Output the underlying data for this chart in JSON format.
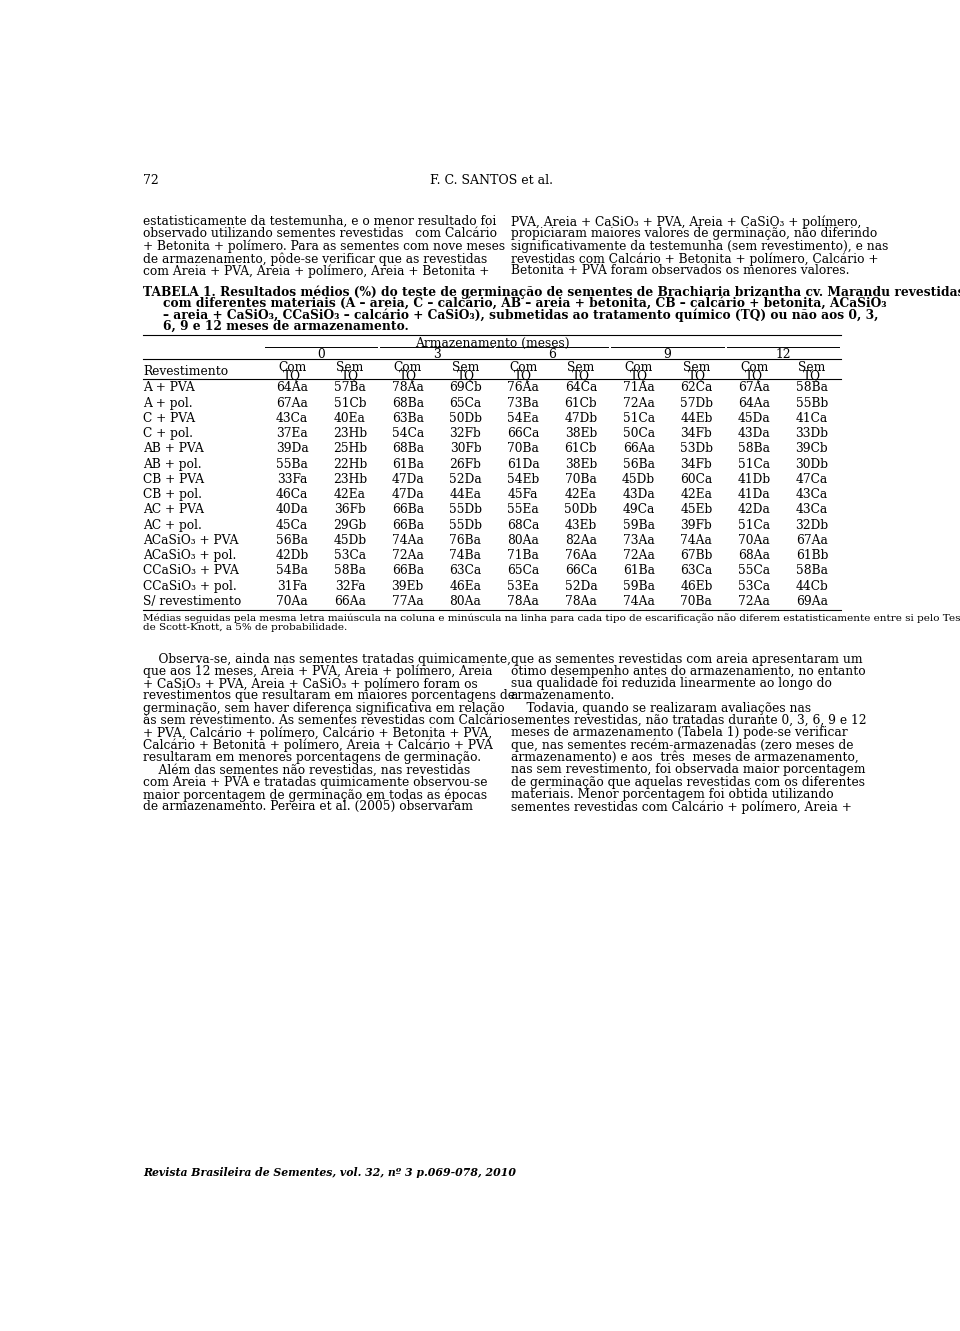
{
  "page_number": "72",
  "header": "F. C. SANTOS et al.",
  "left_lines": [
    "estatisticamente da testemunha, e o menor resultado foi",
    "observado utilizando sementes revestidas   com Calcário",
    "+ Betonita + polímero. Para as sementes com nove meses",
    "de armazenamento, pôde-se verificar que as revestidas",
    "com Areia + PVA, Areia + polímero, Areia + Betonita +"
  ],
  "right_lines": [
    "PVA, Areia + CaSiO₃ + PVA, Areia + CaSiO₃ + polímero,",
    "propiciaram maiores valores de germinação, não diferindo",
    "significativamente da testemunha (sem revestimento), e nas",
    "revestidas com Calcário + Betonita + polímero, Calcário +",
    "Betonita + PVA foram observados os menores valores."
  ],
  "caption_line1_pre": "TABELA 1. Resultados médios (%) do teste de germinação de sementes de ",
  "caption_line1_italic": "Brachiaria brizantha",
  "caption_line1_post": " cv. Marandu revestidas",
  "caption_lines_rest": [
    "com diferentes materiais (A – areia, C – calcário, AB – areia + betonita, CB – calcário + betonita, ACaSiO₃",
    "– areia + CaSiO₃, CCaSiO₃ – calcário + CaSiO₃), submetidas ao tratamento químico (TQ) ou não aos 0, 3,",
    "6, 9 e 12 meses de armazenamento."
  ],
  "group_labels": [
    "0",
    "3",
    "6",
    "9",
    "12"
  ],
  "col_sub": [
    "Com",
    "Sem",
    "Com",
    "Sem",
    "Com",
    "Sem",
    "Com",
    "Sem",
    "Com",
    "Sem"
  ],
  "rows": [
    [
      "A + PVA",
      "64Aa",
      "57Ba",
      "78Aa",
      "69Cb",
      "76Aa",
      "64Ca",
      "71Aa",
      "62Ca",
      "67Aa",
      "58Ba"
    ],
    [
      "A + pol.",
      "67Aa",
      "51Cb",
      "68Ba",
      "65Ca",
      "73Ba",
      "61Cb",
      "72Aa",
      "57Db",
      "64Aa",
      "55Bb"
    ],
    [
      "C + PVA",
      "43Ca",
      "40Ea",
      "63Ba",
      "50Db",
      "54Ea",
      "47Db",
      "51Ca",
      "44Eb",
      "45Da",
      "41Ca"
    ],
    [
      "C + pol.",
      "37Ea",
      "23Hb",
      "54Ca",
      "32Fb",
      "66Ca",
      "38Eb",
      "50Ca",
      "34Fb",
      "43Da",
      "33Db"
    ],
    [
      "AB + PVA",
      "39Da",
      "25Hb",
      "68Ba",
      "30Fb",
      "70Ba",
      "61Cb",
      "66Aa",
      "53Db",
      "58Ba",
      "39Cb"
    ],
    [
      "AB + pol.",
      "55Ba",
      "22Hb",
      "61Ba",
      "26Fb",
      "61Da",
      "38Eb",
      "56Ba",
      "34Fb",
      "51Ca",
      "30Db"
    ],
    [
      "CB + PVA",
      "33Fa",
      "23Hb",
      "47Da",
      "52Da",
      "54Eb",
      "70Ba",
      "45Db",
      "60Ca",
      "41Db",
      "47Ca"
    ],
    [
      "CB + pol.",
      "46Ca",
      "42Ea",
      "47Da",
      "44Ea",
      "45Fa",
      "42Ea",
      "43Da",
      "42Ea",
      "41Da",
      "43Ca"
    ],
    [
      "AC + PVA",
      "40Da",
      "36Fb",
      "66Ba",
      "55Db",
      "55Ea",
      "50Db",
      "49Ca",
      "45Eb",
      "42Da",
      "43Ca"
    ],
    [
      "AC + pol.",
      "45Ca",
      "29Gb",
      "66Ba",
      "55Db",
      "68Ca",
      "43Eb",
      "59Ba",
      "39Fb",
      "51Ca",
      "32Db"
    ],
    [
      "ACaSiO₃ + PVA",
      "56Ba",
      "45Db",
      "74Aa",
      "76Ba",
      "80Aa",
      "82Aa",
      "73Aa",
      "74Aa",
      "70Aa",
      "67Aa"
    ],
    [
      "ACaSiO₃ + pol.",
      "42Db",
      "53Ca",
      "72Aa",
      "74Ba",
      "71Ba",
      "76Aa",
      "72Aa",
      "67Bb",
      "68Aa",
      "61Bb"
    ],
    [
      "CCaSiO₃ + PVA",
      "54Ba",
      "58Ba",
      "66Ba",
      "63Ca",
      "65Ca",
      "66Ca",
      "61Ba",
      "63Ca",
      "55Ca",
      "58Ba"
    ],
    [
      "CCaSiO₃ + pol.",
      "31Fa",
      "32Fa",
      "39Eb",
      "46Ea",
      "53Ea",
      "52Da",
      "59Ba",
      "46Eb",
      "53Ca",
      "44Cb"
    ],
    [
      "S/ revestimento",
      "70Aa",
      "66Aa",
      "77Aa",
      "80Aa",
      "78Aa",
      "78Aa",
      "74Aa",
      "70Ba",
      "72Aa",
      "69Aa"
    ]
  ],
  "footnote_lines": [
    "Médias seguidas pela mesma letra maiúscula na coluna e minúscula na linha para cada tipo de escarificação não diferem estatisticamente entre si pelo Teste",
    "de Scott-Knott, a 5% de probabilidade."
  ],
  "left_bottom": [
    "    Observa-se, ainda nas sementes tratadas quimicamente,",
    "que aos 12 meses, Areia + PVA, Areia + polímero, Areia",
    "+ CaSiO₃ + PVA, Areia + CaSiO₃ + polímero foram os",
    "revestimentos que resultaram em maiores porcentagens de",
    "germinação, sem haver diferença significativa em relação",
    "às sem revestimento. As sementes revestidas com Calcário",
    "+ PVA, Calcário + polímero, Calcário + Betonita + PVA,",
    "Calcário + Betonita + polímero, Areia + Calcário + PVA",
    "resultaram em menores porcentagens de germinação.",
    "    Além das sementes não revestidas, nas revestidas",
    "com Areia + PVA e tratadas quimicamente observou-se",
    "maior porcentagem de germinação em todas as épocas",
    "de armazenamento. Pereira et al. (2005) observaram"
  ],
  "right_bottom": [
    "que as sementes revestidas com areia apresentaram um",
    "ótimo desempenho antes do armazenamento, no entanto",
    "sua qualidade foi reduzida linearmente ao longo do",
    "armazenamento.",
    "    Todavia, quando se realizaram avaliações nas",
    "sementes revestidas, não tratadas durante 0, 3, 6, 9 e 12",
    "meses de armazenamento (Tabela 1) pode-se verificar",
    "que, nas sementes recém-armazenadas (zero meses de",
    "armazenamento) e aos  três  meses de armazenamento,",
    "nas sem revestimento, foi observada maior porcentagem",
    "de germinação que aquelas revestidas com os diferentes",
    "materiais. Menor porcentagem foi obtida utilizando",
    "sementes revestidas com Calcário + polímero, Areia +"
  ],
  "journal_footer": "Revista Brasileira de Sementes, vol. 32, nº 3 p.069-078, 2010"
}
